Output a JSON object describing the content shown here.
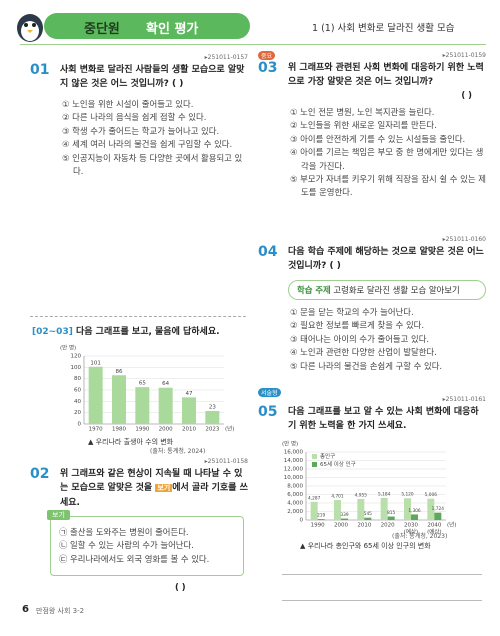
{
  "header": {
    "tab_left": "중단원",
    "tab_right": "확인 평가",
    "section": "1 (1) 사회 변화로 달라진 생활 모습"
  },
  "q01": {
    "number": "01",
    "code": "▸251011-0157",
    "text": "사회 변화로 달라진 사람들의 생활 모습으로 알맞지 않은 것은 어느 것입니까? (   )",
    "options": [
      "① 노인을 위한 시설이 줄어들고 있다.",
      "② 다른 나라의 음식을 쉽게 접할 수 있다.",
      "③ 학생 수가 줄어드는 학교가 늘어나고 있다.",
      "④ 세계 여러 나라의 물건을 쉽게 구입할 수 있다.",
      "⑤ 인공지능이 자동차 등 다양한 곳에서 활용되고 있다."
    ]
  },
  "group": {
    "label": "[02~03]",
    "text": "다음 그래프를 보고, 물음에 답하세요."
  },
  "charts": [
    {
      "type": "bar",
      "unit": "(만 명)",
      "x_unit": "(년)",
      "categories": [
        "1970",
        "1980",
        "1990",
        "2000",
        "2010",
        "2023"
      ],
      "values": [
        101,
        86,
        65,
        64,
        47,
        23
      ],
      "color": "#a9d99b",
      "ylim": [
        0,
        120
      ],
      "yticks": [
        0,
        20,
        40,
        60,
        80,
        100,
        120
      ],
      "grid": true,
      "caption": "▲ 우리나라 출생아 수의 변화",
      "source": "(출처: 통계청, 2024)"
    },
    {
      "type": "bar",
      "unit": "(만 명)",
      "x_unit": "(년)",
      "categories": [
        "1990",
        "2000",
        "2010",
        "2020",
        "2030",
        "2040"
      ],
      "category_notes": [
        null,
        null,
        null,
        null,
        "(예상)",
        "(예상)"
      ],
      "series": [
        {
          "name": "총인구",
          "color": "#b9e0ab",
          "values": [
            4287,
            4701,
            4955,
            5184,
            5120,
            5006
          ],
          "value_labels": [
            "4,287",
            "4,701",
            "4,955",
            "5,184",
            "5,120",
            "5,006"
          ]
        },
        {
          "name": "65세 이상 인구",
          "color": "#5ea85c",
          "values": [
            219,
            339,
            545,
            815,
            1306,
            1724
          ],
          "value_labels": [
            "219",
            "339",
            "545",
            "815",
            "1,306",
            "1,724"
          ]
        }
      ],
      "ylim": [
        0,
        16000
      ],
      "yticks": [
        0,
        {
          "value": 2000,
          "label": "2,000"
        },
        {
          "value": 4000,
          "label": "4,000"
        },
        {
          "value": 6000,
          "label": "6,000"
        },
        {
          "value": 8000,
          "label": "8,000"
        },
        {
          "value": 10000,
          "label": "10,000"
        },
        {
          "value": 12000,
          "label": "12,000"
        },
        {
          "value": 14000,
          "label": "14,000"
        },
        {
          "value": 16000,
          "label": "16,000"
        }
      ],
      "grid": true,
      "caption": "▲ 우리나라 총인구와 65세 이상 인구의 변화",
      "source": "(출처: 통계청, 2023)"
    }
  ],
  "q02": {
    "number": "02",
    "code": "▸251011-0158",
    "text": "위 그래프와 같은 현상이 지속될 때 나타날 수 있는 모습으로 알맞은 것을",
    "tag": "보기",
    "text_end": "에서 골라 기호를 쓰세요.",
    "box_title": "보기",
    "box_items": [
      "㉠ 출산을 도와주는 병원이 줄어든다.",
      "㉡ 일할 수 있는 사람의 수가 늘어난다.",
      "㉢ 우리나라에서도 외국 영화를 볼 수 있다."
    ],
    "blank": "(          )"
  },
  "q03": {
    "number": "03",
    "badge": "중요",
    "code": "▸251011-0159",
    "text": "위 그래프와 관련된 사회 변화에 대응하기 위한 노력으로 가장 알맞은 것은 어느 것입니까?",
    "blank": "(   )",
    "options": [
      "① 노인 전문 병원, 노인 복지관을 늘린다.",
      "② 노인들을 위한 새로운 일자리를 만든다.",
      "③ 아이를 안전하게 기를 수 있는 시설들을 줄인다.",
      "④ 아이를 기르는 책임은 부모 중 한 명에게만 있다는 생각을 가진다.",
      "⑤ 부모가 자녀를 키우기 위해 직장을 잠시 쉴 수 있는 제도를 운영한다."
    ]
  },
  "q04": {
    "number": "04",
    "code": "▸251011-0160",
    "text": "다음 학습 주제에 해당하는 것으로 알맞은 것은 어느 것입니까? (   )",
    "topic_label": "학습 주제",
    "topic": "고령화로 달라진 생활 모습 알아보기",
    "options": [
      "① 문을 닫는 학교의 수가 늘어난다.",
      "② 필요한 정보를 빠르게 찾을 수 있다.",
      "③ 태어나는 아이의 수가 줄어들고 있다.",
      "④ 노인과 관련한 다양한 산업이 발달한다.",
      "⑤ 다른 나라의 물건을 손쉽게 구할 수 있다."
    ]
  },
  "q05": {
    "number": "05",
    "badge": "서술형",
    "code": "▸251011-0161",
    "text": "다음 그래프를 보고 알 수 있는 사회 변화에 대응하기 위한 노력을 한 가지 쓰세요."
  },
  "footer": {
    "page": "6",
    "book": "만점왕 사회 3-2"
  }
}
